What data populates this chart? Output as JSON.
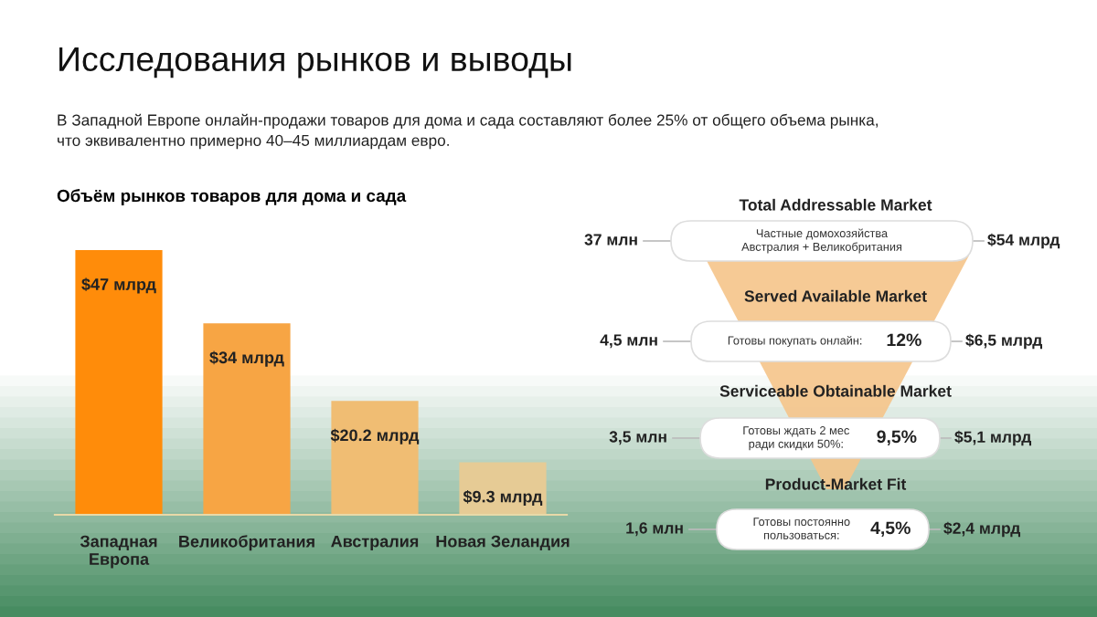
{
  "chart_data": [
    {
      "type": "bar",
      "title": "Объём рынков товаров для дома и сада",
      "annotations": [
        "Исследования рынков и выводы",
        "В Западной Европе онлайн-продажи товаров для дома и сада составляют более 25% от общего объема рынка,\nчто эквивалентно примерно 40–45 миллиардам евро."
      ],
      "categories": [
        "Западная\nЕвропа",
        "Великобритания",
        "Австралия",
        "Новая Зеландия"
      ],
      "values": [
        47,
        34,
        20.2,
        9.3
      ],
      "colors": [
        "#ff8c0a",
        "#f7a544",
        "#f0bd73",
        "#e6cb95"
      ],
      "value_labels": [
        "$47 млрд",
        "$34 млрд",
        "$20.2 млрд",
        "$9.3 млрд"
      ]
    },
    {
      "type": "other",
      "categories": [
        "Total Addressable Market",
        "Served Available Market",
        "Serviceable Obtainable Market",
        "Product-Market Fit"
      ],
      "annotations": [
        "37 млн",
        "Частные домохозяйства\nАвстралия + Великобритания",
        "$54 млрд",
        "4,5 млн",
        "Готовы покупать онлайн:",
        "12%",
        "$6,5 млрд",
        "3,5 млн",
        "Готовы ждать 2 мес\nради скидки 50%:",
        "9,5%",
        "$5,1 млрд",
        "1,6 млн",
        "Готовы постоянно\nпользоваться:",
        "4,5%",
        "$2,4 млрд"
      ]
    }
  ]
}
